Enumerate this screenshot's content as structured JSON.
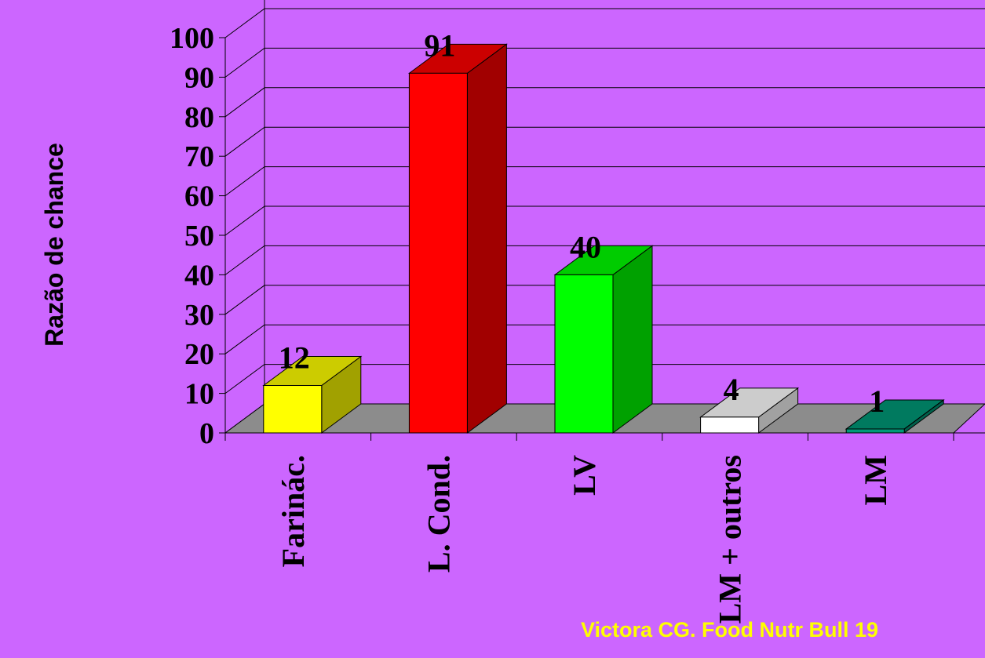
{
  "chart_data": {
    "type": "bar3d",
    "y_label": "Razão de chance",
    "categories": [
      "Farinác.",
      "L. Cond.",
      "LV",
      "LM + outros",
      "LM"
    ],
    "values": [
      12,
      91,
      40,
      4,
      1
    ],
    "colors": [
      "#ffff00",
      "#ff0000",
      "#00ff00",
      "#ffffff",
      "#009977"
    ],
    "ylim": [
      0,
      100
    ],
    "yticks": [
      0,
      10,
      20,
      30,
      40,
      50,
      60,
      70,
      80,
      90,
      100
    ],
    "grid": true,
    "source": "Victora CG. Food Nutr Bull 19"
  }
}
